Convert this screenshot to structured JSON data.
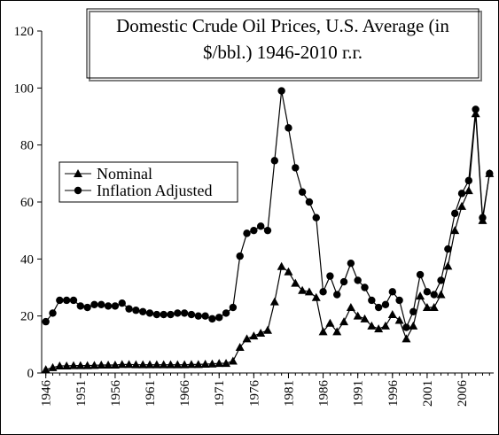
{
  "chart_data": {
    "type": "line",
    "title": [
      "Domestic Crude Oil  Prices, U.S. Average (in",
      "$/bbl.) 1946-2010 г.г."
    ],
    "x": [
      1946,
      1947,
      1948,
      1949,
      1950,
      1951,
      1952,
      1953,
      1954,
      1955,
      1956,
      1957,
      1958,
      1959,
      1960,
      1961,
      1962,
      1963,
      1964,
      1965,
      1966,
      1967,
      1968,
      1969,
      1970,
      1971,
      1972,
      1973,
      1974,
      1975,
      1976,
      1977,
      1978,
      1979,
      1980,
      1981,
      1982,
      1983,
      1984,
      1985,
      1986,
      1987,
      1988,
      1989,
      1990,
      1991,
      1992,
      1993,
      1994,
      1995,
      1996,
      1997,
      1998,
      1999,
      2000,
      2001,
      2002,
      2003,
      2004,
      2005,
      2006,
      2007,
      2008,
      2009,
      2010
    ],
    "series": [
      {
        "name": "Nominal",
        "color": "#000000",
        "marker": "triangle",
        "values": [
          1.2,
          1.9,
          2.5,
          2.5,
          2.6,
          2.6,
          2.6,
          2.7,
          2.8,
          2.8,
          2.8,
          3.0,
          3.0,
          2.9,
          2.9,
          2.9,
          2.9,
          2.9,
          2.9,
          2.9,
          2.9,
          3.0,
          3.0,
          3.1,
          3.2,
          3.4,
          3.4,
          4.2,
          9,
          12,
          13,
          14,
          15,
          25,
          37.4,
          35.5,
          31.5,
          29,
          28.5,
          26.5,
          14.5,
          17.5,
          14.5,
          18,
          23,
          20,
          19,
          16.5,
          15.5,
          16.5,
          20.5,
          18.5,
          12,
          16.5,
          27,
          23,
          23,
          27.5,
          37.5,
          50,
          58.5,
          64,
          91,
          53.5,
          70
        ]
      },
      {
        "name": "Inflation Adjusted",
        "color": "#000000",
        "marker": "circle",
        "values": [
          18,
          21,
          25.5,
          25.5,
          25.5,
          23.5,
          23,
          24,
          24,
          23.5,
          23.5,
          24.5,
          22.5,
          22,
          21.5,
          21,
          20.5,
          20.5,
          20.5,
          21,
          21,
          20.5,
          20,
          20,
          19,
          19.5,
          21,
          23,
          41,
          49,
          50,
          51.5,
          50,
          74.5,
          99,
          86,
          72,
          63.5,
          60,
          54.5,
          28.5,
          34,
          27.5,
          32,
          38.5,
          32.5,
          30,
          25.5,
          23,
          24,
          28.5,
          25.5,
          16,
          21.5,
          34.5,
          28.5,
          27.5,
          32.5,
          43.5,
          56,
          63,
          67.5,
          92.5,
          54.5,
          70
        ]
      }
    ],
    "xlim": [
      1945.4,
      2010.6
    ],
    "xticks": [
      1946,
      1951,
      1956,
      1961,
      1966,
      1971,
      1976,
      1981,
      1986,
      1991,
      1996,
      2001,
      2006
    ],
    "ylim": [
      0,
      120
    ],
    "yticks": [
      0,
      20,
      40,
      60,
      80,
      100,
      120
    ],
    "legend": "upper-left"
  }
}
